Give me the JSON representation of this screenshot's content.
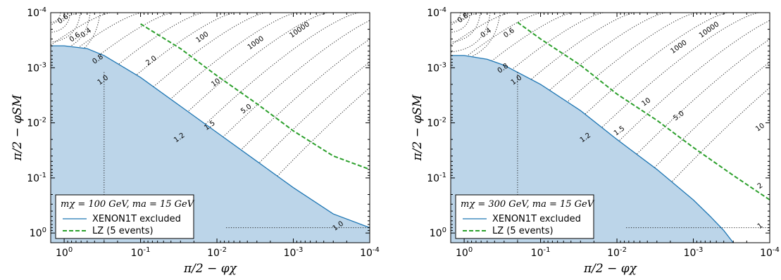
{
  "chart_data": [
    {
      "type": "area",
      "xlabel": "π/2 − φχ",
      "ylabel": "π/2 − φSM",
      "x_axis": {
        "scale": "log",
        "reversed": true,
        "range": [
          1.5,
          0.0001
        ],
        "tick_mantissa": "10",
        "tick_exponents": [
          "0",
          "-1",
          "-2",
          "-3",
          "-4"
        ]
      },
      "y_axis": {
        "scale": "log",
        "reversed": true,
        "range": [
          1.5,
          0.0001
        ],
        "tick_mantissa": "10",
        "tick_exponents": [
          "0",
          "-1",
          "-2",
          "-3",
          "-4"
        ]
      },
      "legend_title": "mχ = 100 GeV, ma = 15 GeV",
      "legend_placement": "lower-left",
      "series": [
        {
          "name": "XENON1T excluded",
          "style": "solid-fill",
          "color": "#1f77b4",
          "fill": "#bcd5e9",
          "x": [
            1.5,
            1.0,
            0.5,
            0.3,
            0.1,
            0.03,
            0.01,
            0.003,
            0.001,
            0.0003,
            0.0001
          ],
          "y": [
            0.0004,
            0.0004,
            0.00045,
            0.0006,
            0.0015,
            0.005,
            0.015,
            0.05,
            0.15,
            0.45,
            0.8
          ]
        },
        {
          "name": "LZ (5 events)",
          "style": "dashed",
          "color": "#2ca02c",
          "x": [
            0.1,
            0.03,
            0.01,
            0.003,
            0.001,
            0.0003,
            0.0001
          ],
          "y": [
            0.00016,
            0.00045,
            0.0014,
            0.0045,
            0.014,
            0.04,
            0.07
          ]
        }
      ],
      "contour_labels": [
        {
          "text": "0.6",
          "x": 1.0,
          "y": 0.00014
        },
        {
          "text": "0.4",
          "x": 0.5,
          "y": 0.00025
        },
        {
          "text": "0.6",
          "x": 0.7,
          "y": 0.0003
        },
        {
          "text": "0.8",
          "x": 0.35,
          "y": 0.00075
        },
        {
          "text": "2.0",
          "x": 0.07,
          "y": 0.0008
        },
        {
          "text": "100",
          "x": 0.015,
          "y": 0.0003
        },
        {
          "text": "1000",
          "x": 0.003,
          "y": 0.00038
        },
        {
          "text": "10000",
          "x": 0.0008,
          "y": 0.00022
        },
        {
          "text": "10",
          "x": 0.01,
          "y": 0.002
        },
        {
          "text": "1.0",
          "x": 0.3,
          "y": 0.0018
        },
        {
          "text": "5.0",
          "x": 0.004,
          "y": 0.006
        },
        {
          "text": "1.5",
          "x": 0.012,
          "y": 0.012
        },
        {
          "text": "1.2",
          "x": 0.03,
          "y": 0.02
        },
        {
          "text": "1.0",
          "x": 0.00025,
          "y": 0.8
        }
      ]
    },
    {
      "type": "area",
      "xlabel": "π/2 − φχ",
      "ylabel": "π/2 − φSM",
      "x_axis": {
        "scale": "log",
        "reversed": true,
        "range": [
          1.5,
          0.0001
        ],
        "tick_mantissa": "10",
        "tick_exponents": [
          "0",
          "-1",
          "-2",
          "-3",
          "-4"
        ]
      },
      "y_axis": {
        "scale": "log",
        "reversed": true,
        "range": [
          1.5,
          0.0001
        ],
        "tick_mantissa": "10",
        "tick_exponents": [
          "0",
          "-1",
          "-2",
          "-3",
          "-4"
        ]
      },
      "legend_title": "mχ = 300 GeV, ma = 15 GeV",
      "legend_placement": "lower-left",
      "series": [
        {
          "name": "XENON1T excluded",
          "style": "solid-fill",
          "color": "#1f77b4",
          "fill": "#bcd5e9",
          "x": [
            1.5,
            1.0,
            0.5,
            0.3,
            0.1,
            0.03,
            0.01,
            0.003,
            0.001,
            0.0006,
            0.0004,
            0.0003
          ],
          "y": [
            0.0006,
            0.0006,
            0.0007,
            0.0009,
            0.002,
            0.006,
            0.02,
            0.07,
            0.25,
            0.5,
            0.9,
            1.5
          ]
        },
        {
          "name": "LZ (5 events)",
          "style": "dashed",
          "color": "#2ca02c",
          "x": [
            0.2,
            0.1,
            0.03,
            0.01,
            0.003,
            0.001,
            0.0003,
            0.0001
          ],
          "y": [
            0.00015,
            0.0003,
            0.0009,
            0.003,
            0.009,
            0.028,
            0.09,
            0.25
          ]
        }
      ],
      "contour_labels": [
        {
          "text": "0.8",
          "x": 1.0,
          "y": 0.00012
        },
        {
          "text": "0.4",
          "x": 0.5,
          "y": 0.00025
        },
        {
          "text": "0.6",
          "x": 0.25,
          "y": 0.00025
        },
        {
          "text": "0.8",
          "x": 0.3,
          "y": 0.0011
        },
        {
          "text": "1.0",
          "x": 0.2,
          "y": 0.0018
        },
        {
          "text": "10000",
          "x": 0.0006,
          "y": 0.00022
        },
        {
          "text": "1000",
          "x": 0.0015,
          "y": 0.00045
        },
        {
          "text": "10",
          "x": 0.004,
          "y": 0.0045
        },
        {
          "text": "5.0",
          "x": 0.0015,
          "y": 0.008
        },
        {
          "text": "1.5",
          "x": 0.009,
          "y": 0.015
        },
        {
          "text": "1.2",
          "x": 0.025,
          "y": 0.02
        },
        {
          "text": "10",
          "x": 0.0001,
          "y": 0.013
        },
        {
          "text": "2",
          "x": 0.0001,
          "y": 0.15
        },
        {
          "text": "1",
          "x": 0.0001,
          "y": 0.8
        }
      ]
    }
  ]
}
